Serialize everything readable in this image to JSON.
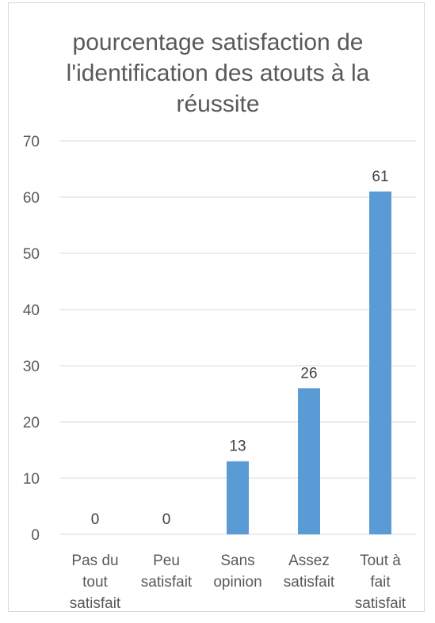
{
  "chart_data": {
    "type": "bar",
    "title": "pourcentage satisfaction de l'identification des atouts à la réussite",
    "categories": [
      [
        "Pas du",
        "tout",
        "satisfait"
      ],
      [
        "Peu",
        "satisfait"
      ],
      [
        "Sans",
        "opinion"
      ],
      [
        "Assez",
        "satisfait"
      ],
      [
        "Tout à",
        "fait",
        "satisfait"
      ]
    ],
    "values": [
      0,
      0,
      13,
      26,
      61
    ],
    "data_labels": true,
    "ylim": [
      0,
      70
    ],
    "yticks": [
      0,
      10,
      20,
      30,
      40,
      50,
      60,
      70
    ],
    "grid": true,
    "legend": "none",
    "colors": {
      "bar": "#5b9bd5",
      "grid": "#d9d9d9",
      "text": "#595959"
    }
  }
}
